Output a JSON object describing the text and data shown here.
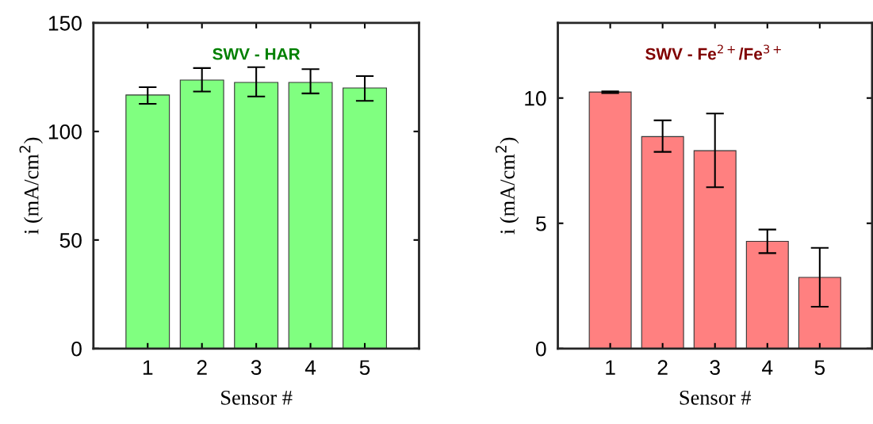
{
  "chart_data": [
    {
      "type": "bar",
      "title": "SWV - HAR",
      "xlabel": "Sensor #",
      "ylabel": "i (mA/cm$^{2}$)",
      "categories": [
        "1",
        "2",
        "3",
        "4",
        "5"
      ],
      "series": [
        {
          "color": "#80ff80",
          "values": [
            116.8,
            123.7,
            122.6,
            122.6,
            120.0
          ],
          "errors": [
            [
              112.7,
              120.4
            ],
            [
              118.4,
              129.2
            ],
            [
              116.1,
              129.6
            ],
            [
              117.5,
              128.7
            ],
            [
              114.1,
              125.5
            ]
          ]
        }
      ],
      "ylim": [
        0,
        150
      ],
      "yticks": [
        0,
        50,
        100,
        150
      ],
      "grid": false,
      "legend": false
    },
    {
      "type": "bar",
      "title": "SWV - Fe$^{2+}$/Fe$^{3+}$",
      "xlabel": "Sensor #",
      "ylabel": "i (mA/cm$^{2}$)",
      "categories": [
        "1",
        "2",
        "3",
        "4",
        "5"
      ],
      "series": [
        {
          "color": "#ff8080",
          "values": [
            10.24,
            8.46,
            7.9,
            4.28,
            2.84
          ],
          "errors": [
            [
              10.2,
              10.27
            ],
            [
              7.85,
              9.11
            ],
            [
              6.44,
              9.38
            ],
            [
              3.81,
              4.75
            ],
            [
              1.67,
              4.02
            ]
          ]
        }
      ],
      "ylim": [
        0,
        13
      ],
      "yticks": [
        0,
        5,
        10
      ],
      "grid": false,
      "legend": false
    }
  ]
}
